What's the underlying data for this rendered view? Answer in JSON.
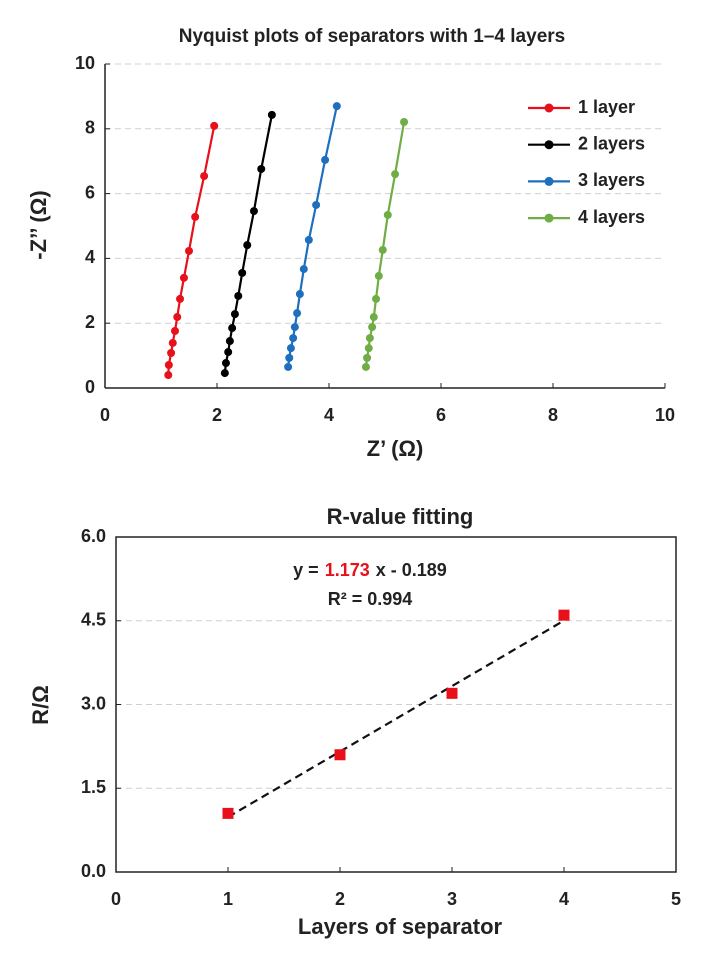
{
  "chart_data": [
    {
      "type": "line",
      "title": "Nyquist plots of separators with 1–4 layers",
      "xlabel": "Z’  (Ω)",
      "ylabel": "-Z’’ (Ω)",
      "xlim": [
        0,
        10
      ],
      "ylim": [
        0,
        10
      ],
      "xticks": [
        0,
        2,
        4,
        6,
        8,
        10
      ],
      "yticks": [
        0,
        2,
        4,
        6,
        8,
        10
      ],
      "grid": true,
      "legend": "upper right",
      "markers": true,
      "series": [
        {
          "name": "1 layer",
          "color": "#e8101a",
          "x": [
            1.13,
            1.14,
            1.18,
            1.21,
            1.25,
            1.29,
            1.34,
            1.41,
            1.5,
            1.61,
            1.77,
            1.95
          ],
          "values": [
            0.4,
            0.71,
            1.08,
            1.39,
            1.76,
            2.19,
            2.75,
            3.4,
            4.23,
            5.28,
            6.54,
            8.09
          ]
        },
        {
          "name": "2 layers",
          "color": "#000000",
          "x": [
            2.14,
            2.16,
            2.2,
            2.23,
            2.27,
            2.32,
            2.38,
            2.45,
            2.54,
            2.66,
            2.79,
            2.98
          ],
          "values": [
            0.46,
            0.77,
            1.11,
            1.45,
            1.85,
            2.28,
            2.84,
            3.55,
            4.41,
            5.46,
            6.76,
            8.43
          ]
        },
        {
          "name": "3 layers",
          "color": "#1f6fbf",
          "x": [
            3.27,
            3.29,
            3.32,
            3.36,
            3.39,
            3.43,
            3.48,
            3.55,
            3.64,
            3.77,
            3.93,
            4.14
          ],
          "values": [
            0.65,
            0.93,
            1.23,
            1.54,
            1.88,
            2.31,
            2.9,
            3.67,
            4.57,
            5.65,
            7.04,
            8.7
          ]
        },
        {
          "name": "4 layers",
          "color": "#70ad47",
          "x": [
            4.66,
            4.68,
            4.71,
            4.73,
            4.77,
            4.8,
            4.84,
            4.89,
            4.96,
            5.05,
            5.18,
            5.34
          ],
          "values": [
            0.65,
            0.93,
            1.23,
            1.54,
            1.88,
            2.19,
            2.75,
            3.46,
            4.26,
            5.34,
            6.6,
            8.21
          ]
        }
      ]
    },
    {
      "type": "scatter",
      "title": "R-value fitting",
      "xlabel": "Layers of separator",
      "ylabel": "R/Ω",
      "xlim": [
        0,
        5
      ],
      "ylim": [
        0,
        6
      ],
      "xticks": [
        0,
        1,
        2,
        3,
        4,
        5
      ],
      "yticks": [
        {
          "value": 0,
          "label": "0.0"
        },
        1.5,
        {
          "value": 3,
          "label": "3.0"
        },
        4.5,
        {
          "value": 6,
          "label": "6.0"
        }
      ],
      "grid": true,
      "color": "#e8101a",
      "x": [
        1,
        2,
        3,
        4
      ],
      "values": [
        1.05,
        2.1,
        3.2,
        4.6
      ],
      "fit": {
        "prefix": "y =",
        "slope": 1.173,
        "intercept": -0.189,
        "intercept_label": "x - 0.189",
        "r2_label": "R² = 0.994"
      }
    }
  ]
}
